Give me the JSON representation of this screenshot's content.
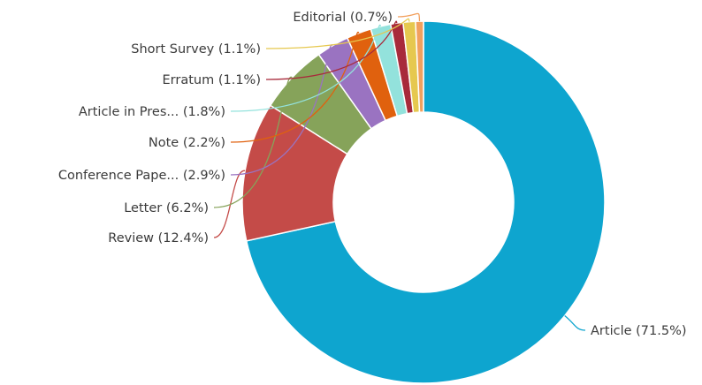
{
  "chart_data": {
    "type": "pie",
    "variant": "donut",
    "title": "",
    "slices": [
      {
        "label": "Article (71.5%)",
        "value": 71.5,
        "color": "#0ea5cf"
      },
      {
        "label": "Review (12.4%)",
        "value": 12.4,
        "color": "#c44b48"
      },
      {
        "label": "Letter (6.2%)",
        "value": 6.2,
        "color": "#86a35a"
      },
      {
        "label": "Conference Pape... (2.9%)",
        "value": 2.9,
        "color": "#9a73c1"
      },
      {
        "label": "Note (2.2%)",
        "value": 2.2,
        "color": "#e0610e"
      },
      {
        "label": "Article in Pres... (1.8%)",
        "value": 1.8,
        "color": "#93e2dc"
      },
      {
        "label": "Erratum (1.1%)",
        "value": 1.1,
        "color": "#a82a3b"
      },
      {
        "label": "Short Survey (1.1%)",
        "value": 1.1,
        "color": "#e6c84f"
      },
      {
        "label": "Editorial (0.7%)",
        "value": 0.7,
        "color": "#f2a05e"
      }
    ]
  }
}
